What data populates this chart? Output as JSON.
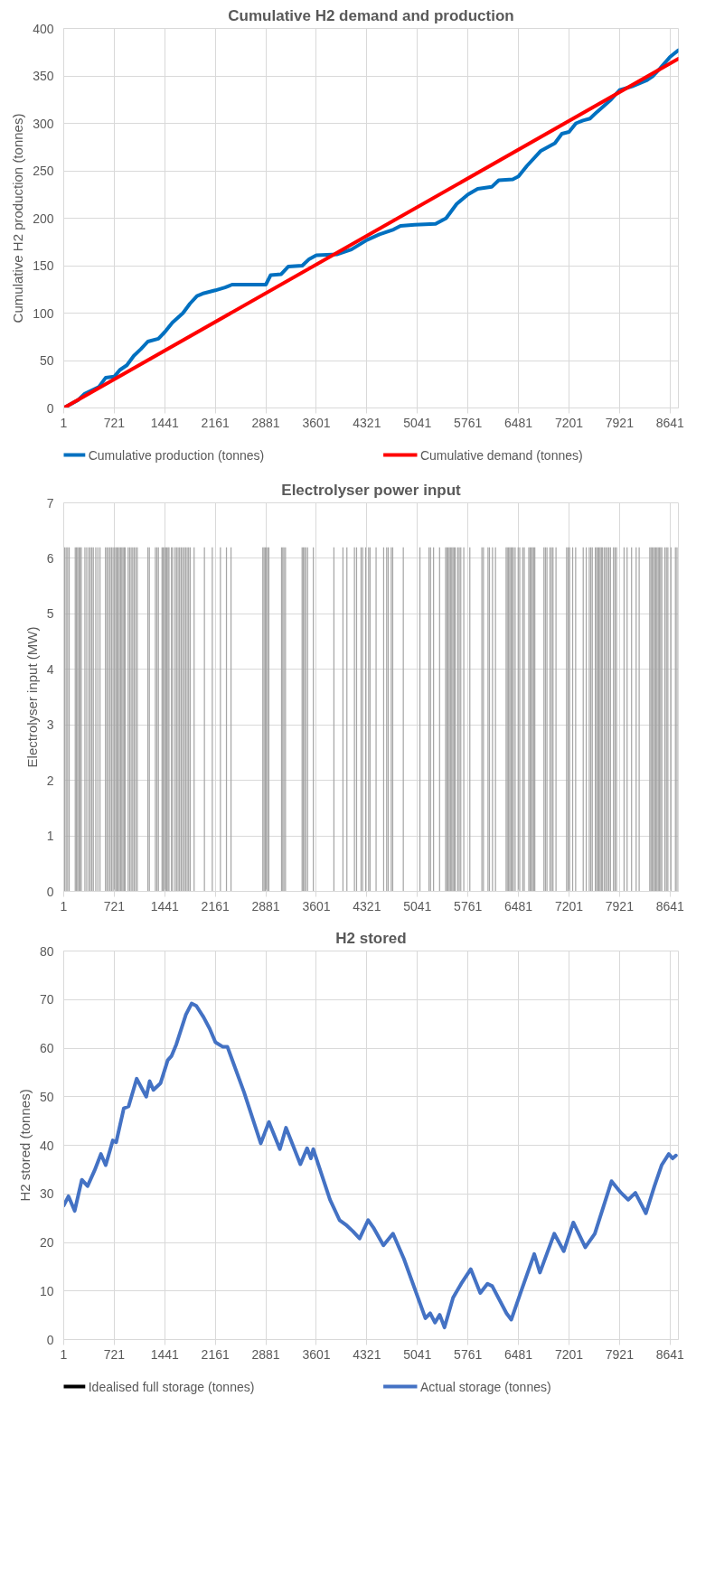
{
  "chart_data": [
    {
      "type": "line",
      "title": "Cumulative H2 demand and production",
      "ylabel": "Cumulative H2 production (tonnes)",
      "xlim": [
        1,
        8760
      ],
      "xticks": [
        1,
        721,
        1441,
        2161,
        2881,
        3601,
        4321,
        5041,
        5761,
        6481,
        7201,
        7921,
        8641
      ],
      "ylim": [
        0,
        400
      ],
      "yticks": [
        0,
        50,
        100,
        150,
        200,
        250,
        300,
        350,
        400
      ],
      "grid": true,
      "legend": "bottom",
      "series": [
        {
          "name": "Cumulative production (tonnes)",
          "color": "#0070c0",
          "x": [
            1,
            200,
            300,
            500,
            600,
            721,
            800,
            900,
            1000,
            1100,
            1200,
            1350,
            1441,
            1550,
            1700,
            1800,
            1900,
            2000,
            2161,
            2300,
            2400,
            2881,
            2950,
            3100,
            3200,
            3400,
            3500,
            3601,
            3900,
            4100,
            4321,
            4500,
            4700,
            4800,
            5000,
            5300,
            5450,
            5600,
            5761,
            5900,
            6100,
            6200,
            6400,
            6481,
            6600,
            6800,
            7000,
            7100,
            7201,
            7300,
            7400,
            7500,
            7600,
            7800,
            7921,
            8100,
            8300,
            8400,
            8500,
            8641,
            8760
          ],
          "values": [
            0,
            8,
            15,
            22,
            32,
            33,
            40,
            45,
            55,
            62,
            70,
            73,
            80,
            90,
            100,
            110,
            118,
            121,
            124,
            127,
            130,
            130,
            140,
            141,
            149,
            150,
            157,
            161,
            162,
            167,
            177,
            183,
            188,
            192,
            193,
            194,
            200,
            215,
            225,
            231,
            233,
            240,
            241,
            244,
            255,
            271,
            279,
            289,
            291,
            300,
            303,
            305,
            312,
            325,
            335,
            339,
            345,
            350,
            358,
            370,
            377
          ]
        },
        {
          "name": "Cumulative demand (tonnes)",
          "color": "#ff0000",
          "x": [
            1,
            8760
          ],
          "values": [
            0,
            368
          ]
        }
      ]
    },
    {
      "type": "bar",
      "title": "Electrolyser power input",
      "ylabel": "Electrolyser input (MW)",
      "xlim": [
        1,
        8760
      ],
      "xticks": [
        1,
        721,
        1441,
        2161,
        2881,
        3601,
        4321,
        5041,
        5761,
        6481,
        7201,
        7921,
        8641
      ],
      "ylim": [
        0,
        7
      ],
      "yticks": [
        0,
        1,
        2,
        3,
        4,
        5,
        6,
        7
      ],
      "grid": true,
      "color": "#a5a5a5",
      "x": [
        14,
        35,
        57,
        79,
        165,
        182,
        199,
        217,
        234,
        251,
        303,
        329,
        359,
        380,
        402,
        423,
        458,
        488,
        518,
        596,
        617,
        639,
        661,
        682,
        704,
        725,
        743,
        760,
        777,
        794,
        812,
        829,
        846,
        863,
        876,
        919,
        941,
        962,
        984,
        1005,
        1027,
        1049,
        1200,
        1221,
        1307,
        1329,
        1350,
        1402,
        1419,
        1437,
        1454,
        1471,
        1488,
        1501,
        1536,
        1553,
        1587,
        1609,
        1631,
        1652,
        1674,
        1695,
        1717,
        1738,
        1760,
        1781,
        1803,
        1859,
        2006,
        2118,
        2234,
        2320,
        2385,
        2838,
        2855,
        2872,
        2889,
        2907,
        2924,
        3105,
        3122,
        3139,
        3161,
        3398,
        3415,
        3433,
        3450,
        3476,
        3558,
        3851,
        3980,
        4036,
        4144,
        4174,
        4238,
        4260,
        4303,
        4346,
        4366,
        4452,
        4560,
        4603,
        4625,
        4668,
        4689,
        4840,
        5077,
        5206,
        5228,
        5271,
        5357,
        5443,
        5461,
        5478,
        5495,
        5512,
        5530,
        5547,
        5564,
        5581,
        5616,
        5637,
        5659,
        5702,
        5788,
        5960,
        5982,
        6047,
        6068,
        6111,
        6154,
        6305,
        6322,
        6340,
        6357,
        6374,
        6391,
        6409,
        6434,
        6477,
        6499,
        6542,
        6564,
        6628,
        6646,
        6663,
        6680,
        6697,
        6714,
        6844,
        6865,
        6887,
        6930,
        6952,
        6973,
        7016,
        7167,
        7188,
        7210,
        7253,
        7296,
        7404,
        7447,
        7490,
        7512,
        7533,
        7576,
        7594,
        7611,
        7628,
        7645,
        7663,
        7680,
        7706,
        7727,
        7749,
        7770,
        7792,
        7835,
        7857,
        7878,
        7986,
        8029,
        8093,
        8158,
        8201,
        8352,
        8369,
        8386,
        8404,
        8421,
        8438,
        8455,
        8473,
        8490,
        8507,
        8524,
        8567,
        8589,
        8610,
        8654,
        8718,
        8740
      ],
      "values": [
        6.2,
        6.2,
        6.2,
        6.2,
        6.2,
        6.2,
        6.2,
        6.2,
        6.2,
        6.2,
        6.2,
        6.2,
        6.2,
        6.2,
        6.2,
        6.2,
        6.2,
        6.2,
        6.2,
        6.2,
        6.2,
        6.2,
        6.2,
        6.2,
        6.2,
        6.2,
        6.2,
        6.2,
        6.2,
        6.2,
        6.2,
        6.2,
        6.2,
        6.2,
        6.2,
        6.2,
        6.2,
        6.2,
        6.2,
        6.2,
        6.2,
        6.2,
        6.2,
        6.2,
        6.2,
        6.2,
        6.2,
        6.2,
        6.2,
        6.2,
        6.2,
        6.2,
        6.2,
        6.2,
        6.2,
        6.2,
        6.2,
        6.2,
        6.2,
        6.2,
        6.2,
        6.2,
        6.2,
        6.2,
        6.2,
        6.2,
        6.2,
        6.2,
        6.2,
        6.2,
        6.2,
        6.2,
        6.2,
        6.2,
        6.2,
        6.2,
        6.2,
        6.2,
        6.2,
        6.2,
        6.2,
        6.2,
        6.2,
        6.2,
        6.2,
        6.2,
        6.2,
        6.2,
        6.2,
        6.2,
        6.2,
        6.2,
        6.2,
        6.2,
        6.2,
        6.2,
        6.2,
        6.2,
        6.2,
        6.2,
        6.2,
        6.2,
        6.2,
        6.2,
        6.2,
        6.2,
        6.2,
        6.2,
        6.2,
        6.2,
        6.2,
        6.2,
        6.2,
        6.2,
        6.2,
        6.2,
        6.2,
        6.2,
        6.2,
        6.2,
        6.2,
        6.2,
        6.2,
        6.2,
        6.2,
        6.2,
        6.2,
        6.2,
        6.2,
        6.2,
        6.2,
        6.2,
        6.2,
        6.2,
        6.2,
        6.2,
        6.2,
        6.2,
        6.2,
        6.2,
        6.2,
        6.2,
        6.2,
        6.2,
        6.2,
        6.2,
        6.2,
        6.2,
        6.2,
        6.2,
        6.2,
        6.2,
        6.2,
        6.2,
        6.2,
        6.2,
        6.2,
        6.2,
        6.2,
        6.2,
        6.2,
        6.2,
        6.2,
        6.2,
        6.2,
        6.2,
        6.2,
        6.2,
        6.2,
        6.2,
        6.2,
        6.2,
        6.2,
        6.2,
        6.2,
        6.2,
        6.2,
        6.2,
        6.2,
        6.2,
        6.2,
        6.2,
        6.2,
        6.2,
        6.2,
        6.2,
        6.2,
        6.2,
        6.2,
        6.2,
        6.2,
        6.2,
        6.2,
        6.2,
        6.2,
        6.2,
        6.2,
        6.2,
        6.2,
        6.2,
        6.2,
        6.2,
        6.2
      ]
    },
    {
      "type": "line",
      "title": "H2 stored",
      "ylabel": "H2 stored (tonnes)",
      "xlim": [
        1,
        8760
      ],
      "xticks": [
        1,
        721,
        1441,
        2161,
        2881,
        3601,
        4321,
        5041,
        5761,
        6481,
        7201,
        7921,
        8641
      ],
      "ylim": [
        0,
        80
      ],
      "yticks": [
        0,
        10,
        20,
        30,
        40,
        50,
        60,
        70,
        80
      ],
      "grid": true,
      "legend": "bottom",
      "series": [
        {
          "name": "Idealised full storage (tonnes)",
          "color": "#000000"
        },
        {
          "name": "Actual storage (tonnes)",
          "color": "#4472c4",
          "x": [
            1,
            69,
            157,
            259,
            341,
            443,
            531,
            599,
            701,
            748,
            857,
            925,
            1041,
            1177,
            1225,
            1279,
            1381,
            1483,
            1538,
            1606,
            1742,
            1823,
            1891,
            1993,
            2081,
            2163,
            2265,
            2333,
            2571,
            2809,
            2925,
            3081,
            3169,
            3373,
            3469,
            3523,
            3557,
            3795,
            3931,
            4033,
            4121,
            4217,
            4339,
            4421,
            4557,
            4693,
            4849,
            5155,
            5223,
            5291,
            5359,
            5427,
            5549,
            5665,
            5801,
            5937,
            6039,
            6107,
            6311,
            6379,
            6515,
            6706,
            6787,
            6991,
            7127,
            7263,
            7433,
            7569,
            7807,
            7943,
            8045,
            8147,
            8297,
            8419,
            8521,
            8623,
            8677,
            8725
          ],
          "values": [
            27.6,
            29.5,
            26.5,
            32.9,
            31.6,
            34.9,
            38.2,
            35.9,
            41,
            40.6,
            47.6,
            48,
            53.7,
            50,
            53.2,
            51.4,
            52.8,
            57.5,
            58.4,
            60.8,
            66.9,
            69.2,
            68.7,
            66.4,
            64,
            61.2,
            60.3,
            60.3,
            50.9,
            40.4,
            44.8,
            39.2,
            43.6,
            36.1,
            39.4,
            37.3,
            39.2,
            28.8,
            24.6,
            23.5,
            22.3,
            20.8,
            24.6,
            22.9,
            19.4,
            21.8,
            16.6,
            4.4,
            5.4,
            3.5,
            5.1,
            2.5,
            8.6,
            11.5,
            14.5,
            9.6,
            11.5,
            11,
            5.4,
            4.1,
            9.8,
            17.6,
            13.8,
            21.8,
            18.2,
            24.1,
            19,
            21.8,
            32.6,
            30.2,
            28.8,
            30.2,
            26,
            31.6,
            35.9,
            38.2,
            37.3,
            37.9
          ]
        }
      ]
    }
  ]
}
